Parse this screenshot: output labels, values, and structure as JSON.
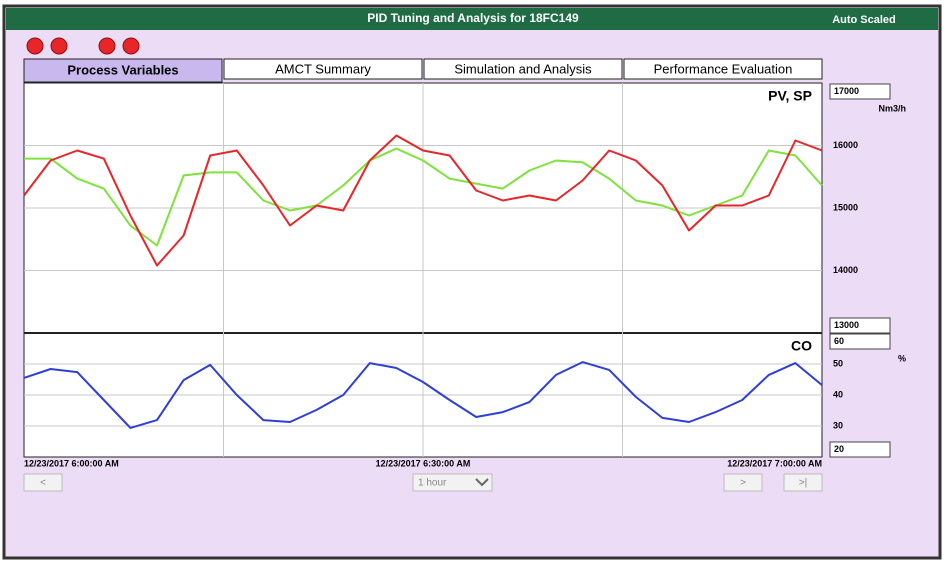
{
  "header": {
    "title": "PID Tuning and Analysis for 18FC149",
    "status": "Auto Scaled"
  },
  "tabs": [
    "Process Variables",
    "AMCT Summary",
    "Simulation and Analysis",
    "Performance Evaluation"
  ],
  "controls": {
    "prev": "<",
    "range": "1 hour",
    "next": ">",
    "end": ">|"
  },
  "chart_data": [
    {
      "type": "line",
      "title": "PV, SP",
      "unit": "Nm3/h",
      "x": [
        "12/23/2017 6:00:00 AM",
        "12/23/2017 6:02:00 AM",
        "12/23/2017 6:04:00 AM",
        "12/23/2017 6:06:00 AM",
        "12/23/2017 6:08:00 AM",
        "12/23/2017 6:10:00 AM",
        "12/23/2017 6:12:00 AM",
        "12/23/2017 6:14:00 AM",
        "12/23/2017 6:16:00 AM",
        "12/23/2017 6:18:00 AM",
        "12/23/2017 6:20:00 AM",
        "12/23/2017 6:22:00 AM",
        "12/23/2017 6:24:00 AM",
        "12/23/2017 6:26:00 AM",
        "12/23/2017 6:28:00 AM",
        "12/23/2017 6:30:00 AM",
        "12/23/2017 6:32:00 AM",
        "12/23/2017 6:34:00 AM",
        "12/23/2017 6:36:00 AM",
        "12/23/2017 6:38:00 AM",
        "12/23/2017 6:40:00 AM",
        "12/23/2017 6:42:00 AM",
        "12/23/2017 6:44:00 AM",
        "12/23/2017 6:46:00 AM",
        "12/23/2017 6:48:00 AM",
        "12/23/2017 6:50:00 AM",
        "12/23/2017 6:52:00 AM",
        "12/23/2017 6:54:00 AM",
        "12/23/2017 6:56:00 AM",
        "12/23/2017 6:58:00 AM",
        "12/23/2017 7:00:00 AM"
      ],
      "series": [
        {
          "color": "#80e23a",
          "values": [
            15790,
            15790,
            15470,
            15310,
            14720,
            14400,
            15520,
            15570,
            15570,
            15120,
            14960,
            15040,
            15360,
            15760,
            15950,
            15760,
            15470,
            15390,
            15310,
            15600,
            15760,
            15730,
            15470,
            15120,
            15040,
            14880,
            15040,
            15200,
            15920,
            15840,
            15360
          ]
        },
        {
          "color": "#e8262a",
          "values": [
            15200,
            15760,
            15920,
            15790,
            14880,
            14080,
            14560,
            15840,
            15920,
            15360,
            14720,
            15040,
            14960,
            15760,
            16160,
            15920,
            15840,
            15280,
            15120,
            15200,
            15120,
            15440,
            15920,
            15760,
            15360,
            14640,
            15040,
            15040,
            15200,
            16080,
            15920
          ]
        }
      ],
      "xlim": [
        "12/23/2017 6:00:00 AM",
        "12/23/2017 7:00:00 AM"
      ],
      "xticks": [
        {
          "value": "12/23/2017 6:15:00 AM",
          "label": null
        },
        "12/23/2017 6:30:00 AM",
        {
          "value": "12/23/2017 6:45:00 AM",
          "label": null
        }
      ],
      "ylim": [
        13000,
        17000
      ],
      "yticks": [
        14000,
        15000,
        16000
      ],
      "grid": true
    },
    {
      "type": "line",
      "title": "CO",
      "unit": "%",
      "x": [
        "12/23/2017 6:00:00 AM",
        "12/23/2017 6:02:00 AM",
        "12/23/2017 6:04:00 AM",
        "12/23/2017 6:06:00 AM",
        "12/23/2017 6:08:00 AM",
        "12/23/2017 6:10:00 AM",
        "12/23/2017 6:12:00 AM",
        "12/23/2017 6:14:00 AM",
        "12/23/2017 6:16:00 AM",
        "12/23/2017 6:18:00 AM",
        "12/23/2017 6:20:00 AM",
        "12/23/2017 6:22:00 AM",
        "12/23/2017 6:24:00 AM",
        "12/23/2017 6:26:00 AM",
        "12/23/2017 6:28:00 AM",
        "12/23/2017 6:30:00 AM",
        "12/23/2017 6:32:00 AM",
        "12/23/2017 6:34:00 AM",
        "12/23/2017 6:36:00 AM",
        "12/23/2017 6:38:00 AM",
        "12/23/2017 6:40:00 AM",
        "12/23/2017 6:42:00 AM",
        "12/23/2017 6:44:00 AM",
        "12/23/2017 6:46:00 AM",
        "12/23/2017 6:48:00 AM",
        "12/23/2017 6:50:00 AM",
        "12/23/2017 6:52:00 AM",
        "12/23/2017 6:54:00 AM",
        "12/23/2017 6:56:00 AM",
        "12/23/2017 6:58:00 AM",
        "12/23/2017 7:00:00 AM"
      ],
      "series": [
        {
          "color": "#2f3fd6",
          "values": [
            45.5,
            48.4,
            47.4,
            38.4,
            29.4,
            31.9,
            44.8,
            49.7,
            40.0,
            31.9,
            31.3,
            35.2,
            40.0,
            50.3,
            48.7,
            44.2,
            38.4,
            32.9,
            34.5,
            37.7,
            46.5,
            50.6,
            48.1,
            39.4,
            32.6,
            31.3,
            34.5,
            38.4,
            46.5,
            50.3,
            43.2
          ]
        }
      ],
      "xlim": [
        "12/23/2017 6:00:00 AM",
        "12/23/2017 7:00:00 AM"
      ],
      "xticks": [
        "12/23/2017 6:00:00 AM",
        {
          "value": "12/23/2017 6:15:00 AM",
          "label": null
        },
        "12/23/2017 6:30:00 AM",
        {
          "value": "12/23/2017 6:45:00 AM",
          "label": null
        },
        "12/23/2017 7:00:00 AM"
      ],
      "ylim": [
        20,
        60
      ],
      "yticks": [
        30,
        40,
        50
      ],
      "grid": true
    }
  ]
}
